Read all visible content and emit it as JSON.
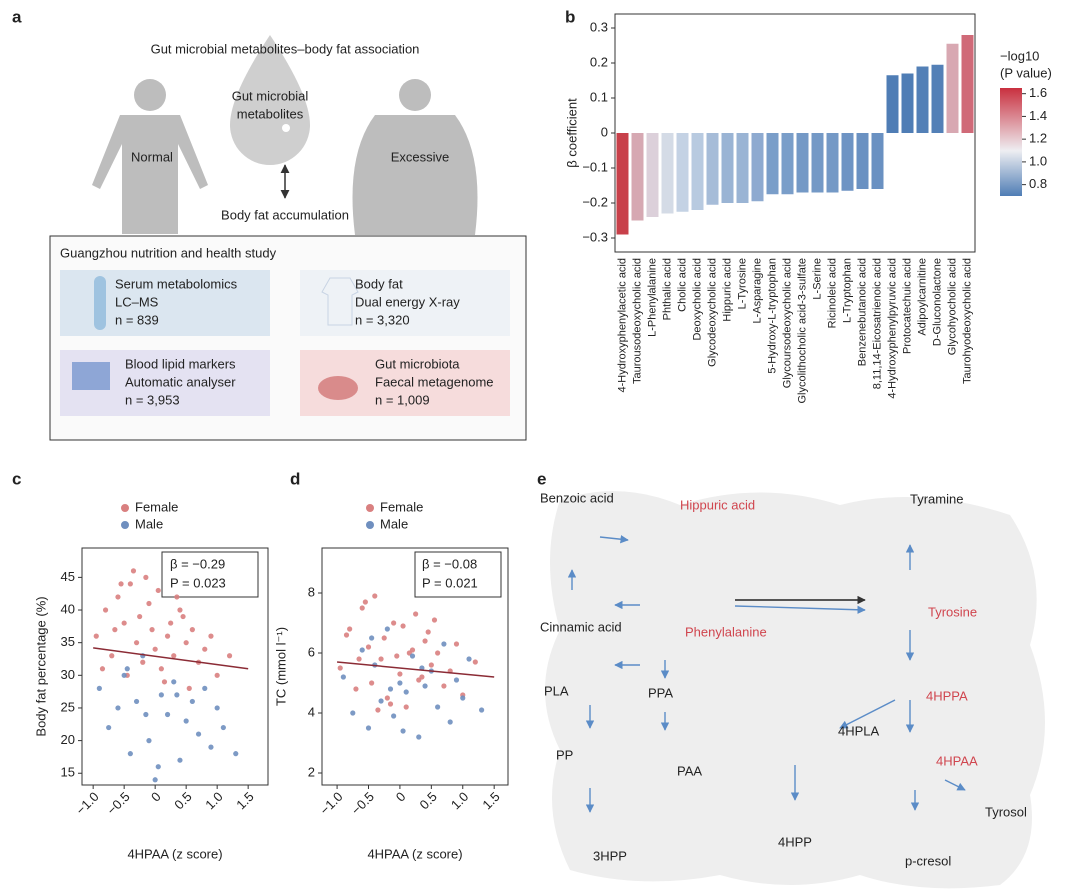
{
  "panel_labels": [
    "a",
    "b",
    "c",
    "d",
    "e"
  ],
  "panel_a": {
    "title": "Gut microbial metabolites–body fat association",
    "drop_lines": [
      "Gut microbial",
      "metabolites"
    ],
    "normal": "Normal",
    "excessive": "Excessive",
    "arrow_label": "Body fat accumulation",
    "study": "Guangzhou nutrition and health study",
    "boxes": [
      [
        "Serum metabolomics",
        "LC–MS",
        "n = 839"
      ],
      [
        "Body fat",
        "Dual energy X-ray",
        "n = 3,320"
      ],
      [
        "Blood lipid markers",
        "Automatic analyser",
        "n = 3,953"
      ],
      [
        "Gut microbiota",
        "Faecal metagenome",
        "n = 1,009"
      ]
    ]
  },
  "chart_data": [
    {
      "type": "bar",
      "ylabel": "β coefficient",
      "categories": [
        "4-Hydroxyphenylacetic acid",
        "Taurousodeoxycholic acid",
        "L-Phenylalanine",
        "Phthalic acid",
        "Cholic acid",
        "Deoxycholic acid",
        "Glycodeoxycholic acid",
        "Hippuric acid",
        "L-Tyrosine",
        "L-Asparagine",
        "5-Hydroxy-L-tryptophan",
        "Glycoursodeoxycholic acid",
        "Glycolithocholic acid-3-sulfate",
        "L-Serine",
        "Ricinoleic acid",
        "L-Tryptophan",
        "Benzenebutanoic acid",
        "8,11,14-Eicosatrienoic acid",
        "4-Hydroxyphenylpyruvic acid",
        "Protocatechuic acid",
        "Adipoylcarnitine",
        "D-Gluconolactone",
        "Glycohyocholic acid",
        "Taurohyodeoxycholic acid"
      ],
      "values": [
        -0.29,
        -0.25,
        -0.24,
        -0.23,
        -0.225,
        -0.22,
        -0.205,
        -0.2,
        -0.2,
        -0.195,
        -0.175,
        -0.175,
        -0.17,
        -0.17,
        -0.17,
        -0.165,
        -0.16,
        -0.16,
        0.165,
        0.17,
        0.19,
        0.195,
        0.255,
        0.28
      ],
      "colors": [
        "#c8404a",
        "#d6a8b2",
        "#dcd0da",
        "#d4dbe6",
        "#c4d2e4",
        "#b8cae0",
        "#a6bcd8",
        "#9ab4d4",
        "#9ab4d4",
        "#8eaad0",
        "#7a9ec9",
        "#7a9ec9",
        "#7499c6",
        "#7499c6",
        "#7499c6",
        "#6e94c4",
        "#6a91c2",
        "#6a91c2",
        "#4f7db5",
        "#4f7db5",
        "#5380b7",
        "#5380b7",
        "#d8a8b2",
        "#d06a78"
      ],
      "label_colors": [
        "#d0454e",
        "#8b8bbf",
        "#d0454e",
        "#222222",
        "#8b8bbf",
        "#8b8bbf",
        "#8b8bbf",
        "#d0454e",
        "#d0454e",
        "#222222",
        "#d0454e",
        "#8b8bbf",
        "#8b8bbf",
        "#222222",
        "#222222",
        "#d0454e",
        "#222222",
        "#222222",
        "#d0454e",
        "#222222",
        "#222222",
        "#222222",
        "#8b8bbf",
        "#8b8bbf"
      ],
      "ylim": [
        -0.34,
        0.34
      ],
      "yticks": [
        {
          "value": -0.3,
          "label": "−0.3"
        },
        {
          "value": -0.2,
          "label": "−0.2"
        },
        {
          "value": -0.1,
          "label": "−0.1"
        },
        0,
        0.1,
        0.2,
        0.3
      ],
      "colorbar": {
        "title": "−log10",
        "title2": "(P value)",
        "lim": [
          0.7,
          1.65
        ],
        "colors": [
          "#4f7db5",
          "#eeeef2",
          "#c9303f"
        ],
        "ticks": [
          0.8,
          {
            "value": 1.0,
            "label": "1.0"
          },
          1.2,
          1.4,
          1.6
        ]
      }
    },
    {
      "type": "scatter",
      "xlabel": "4HPAA (z score)",
      "ylabel": "Body fat percentage (%)",
      "annotation": [
        "β = −0.29",
        "P = 0.023"
      ],
      "xlim": [
        -1.18,
        1.82
      ],
      "ylim": [
        13.2,
        49.5
      ],
      "xticks": [
        {
          "value": -1.0,
          "label": "−1.0"
        },
        {
          "value": -0.5,
          "label": "−0.5"
        },
        0,
        0.5,
        {
          "value": 1.0,
          "label": "1.0"
        },
        1.5
      ],
      "yticks": [
        15,
        20,
        25,
        30,
        35,
        40,
        45
      ],
      "fit": {
        "x": [
          -1,
          1.5
        ],
        "y": [
          34.2,
          31
        ],
        "color": "#8b2b35"
      },
      "series": [
        {
          "name": "Female",
          "color": "#d98080",
          "x": [
            -0.95,
            -0.8,
            -0.7,
            -0.6,
            -0.5,
            -0.45,
            -0.4,
            -0.3,
            -0.25,
            -0.2,
            -0.1,
            -0.05,
            0,
            0.05,
            0.1,
            0.2,
            0.25,
            0.3,
            0.4,
            0.5,
            0.6,
            0.7,
            0.8,
            0.9,
            1.0,
            1.2,
            -0.85,
            -0.55,
            -0.15,
            0.15,
            0.35,
            0.55,
            -0.65,
            -0.35,
            0.45
          ],
          "values": [
            36,
            40,
            33,
            42,
            38,
            30,
            44,
            35,
            39,
            32,
            41,
            37,
            34,
            43,
            31,
            36,
            38,
            33,
            40,
            35,
            37,
            32,
            34,
            36,
            30,
            33,
            31,
            44,
            45,
            29,
            42,
            28,
            37,
            46,
            39
          ]
        },
        {
          "name": "Male",
          "color": "#6f8fbf",
          "x": [
            -0.9,
            -0.75,
            -0.6,
            -0.5,
            -0.4,
            -0.3,
            -0.2,
            -0.1,
            0,
            0.1,
            0.2,
            0.3,
            0.4,
            0.5,
            0.6,
            0.7,
            0.8,
            0.9,
            1.0,
            1.1,
            1.3,
            -0.45,
            0.05,
            0.35,
            -0.15
          ],
          "values": [
            28,
            22,
            25,
            30,
            18,
            26,
            33,
            20,
            14,
            27,
            24,
            29,
            17,
            23,
            26,
            21,
            28,
            19,
            25,
            22,
            18,
            31,
            16,
            27,
            24
          ]
        }
      ]
    },
    {
      "type": "scatter",
      "xlabel": "4HPAA (z score)",
      "ylabel": "TC (mmol l⁻¹)",
      "annotation": [
        "β = −0.08",
        "P = 0.021"
      ],
      "xlim": [
        -1.24,
        1.72
      ],
      "ylim": [
        1.6,
        9.5
      ],
      "xticks": [
        {
          "value": -1.0,
          "label": "−1.0"
        },
        {
          "value": -0.5,
          "label": "−0.5"
        },
        0,
        0.5,
        {
          "value": 1.0,
          "label": "1.0"
        },
        1.5
      ],
      "yticks": [
        2,
        4,
        6,
        8
      ],
      "fit": {
        "x": [
          -1,
          1.5
        ],
        "y": [
          5.7,
          5.2
        ],
        "color": "#8b2b35"
      },
      "series": [
        {
          "name": "Female",
          "color": "#d98080",
          "x": [
            -0.95,
            -0.8,
            -0.7,
            -0.6,
            -0.5,
            -0.45,
            -0.4,
            -0.3,
            -0.25,
            -0.2,
            -0.1,
            -0.05,
            0,
            0.05,
            0.1,
            0.2,
            0.25,
            0.3,
            0.4,
            0.5,
            0.6,
            0.7,
            0.8,
            0.9,
            1.0,
            1.2,
            -0.85,
            -0.55,
            -0.15,
            0.15,
            0.35,
            0.55,
            -0.65,
            -0.35,
            0.45
          ],
          "values": [
            5.5,
            6.8,
            4.8,
            7.5,
            6.2,
            5.0,
            7.9,
            5.8,
            6.5,
            4.5,
            7.0,
            5.9,
            5.3,
            6.9,
            4.2,
            6.1,
            7.3,
            5.1,
            6.4,
            5.6,
            6.0,
            4.9,
            5.4,
            6.3,
            4.6,
            5.7,
            6.6,
            7.7,
            4.3,
            6.0,
            5.2,
            7.1,
            5.8,
            4.1,
            6.7
          ]
        },
        {
          "name": "Male",
          "color": "#6f8fbf",
          "x": [
            -0.9,
            -0.75,
            -0.6,
            -0.5,
            -0.4,
            -0.3,
            -0.2,
            -0.1,
            0,
            0.1,
            0.2,
            0.3,
            0.4,
            0.5,
            0.6,
            0.7,
            0.8,
            0.9,
            1.0,
            1.1,
            1.3,
            -0.45,
            0.05,
            0.35,
            -0.15
          ],
          "values": [
            5.2,
            4.0,
            6.1,
            3.5,
            5.6,
            4.4,
            6.8,
            3.9,
            5.0,
            4.7,
            5.9,
            3.2,
            4.9,
            5.4,
            4.2,
            6.3,
            3.7,
            5.1,
            4.5,
            5.8,
            4.1,
            6.5,
            3.4,
            5.5,
            4.8
          ]
        }
      ]
    }
  ],
  "panel_e": {
    "compounds": [
      "Benzoic acid",
      "Hippuric acid",
      "Tyramine",
      "Cinnamic acid",
      "Phenylalanine",
      "Tyrosine",
      "PLA",
      "PPA",
      "4HPPA",
      "4HPLA",
      "4HPAA",
      "PP",
      "PAA",
      "Tyrosol",
      "3HPP",
      "4HPP",
      "p-cresol"
    ]
  }
}
